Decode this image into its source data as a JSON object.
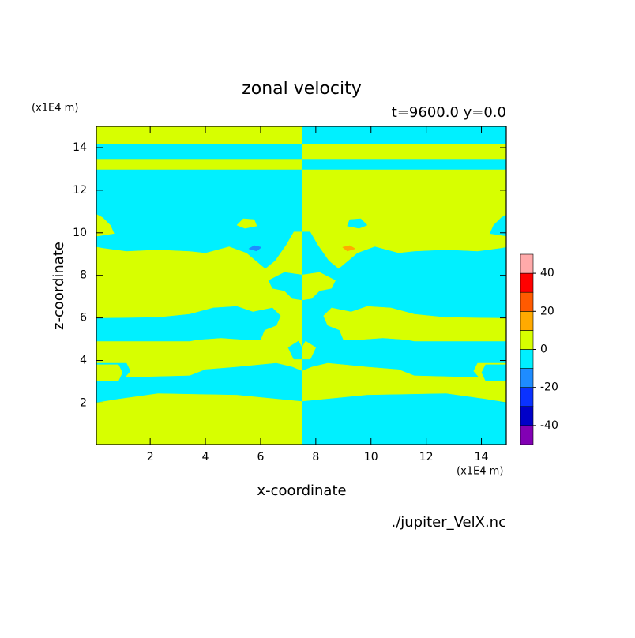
{
  "chart_data": {
    "type": "contour",
    "title": "zonal velocity",
    "subtitle": "t=9600.0 y=0.0",
    "x_label": "x-coordinate",
    "y_label": "z-coordinate",
    "x_unit": "(x1E4 m)",
    "y_unit": "(x1E4 m)",
    "source": "./jupiter_VelX.nc",
    "xlim": [
      0.05,
      14.9
    ],
    "ylim": [
      0.05,
      15
    ],
    "xticks": [
      2,
      4,
      6,
      8,
      10,
      12,
      14
    ],
    "yticks": [
      2,
      4,
      6,
      8,
      10,
      12,
      14
    ],
    "levels": [
      -50,
      -40,
      -30,
      -20,
      -10,
      0,
      10,
      20,
      30,
      40,
      50
    ],
    "colors": [
      "#8200b4",
      "#0000c8",
      "#0a32ff",
      "#1e8cff",
      "#00f0ff",
      "#d7ff00",
      "#ffaa00",
      "#ff5a00",
      "#ff0000",
      "#ffaaaa"
    ],
    "colorbar_ticks": [
      -40,
      -20,
      0,
      20,
      40
    ],
    "regions": [
      {
        "band": 5,
        "polygon": [
          [
            0,
            0
          ],
          [
            7.5,
            0
          ],
          [
            7.5,
            15
          ],
          [
            0,
            15
          ]
        ]
      },
      {
        "band": 4,
        "polygon": [
          [
            7.5,
            0
          ],
          [
            15,
            0
          ],
          [
            15,
            15
          ],
          [
            7.5,
            15
          ]
        ]
      },
      {
        "band": 4,
        "polygon": [
          [
            0,
            14.15
          ],
          [
            7.5,
            14.15
          ],
          [
            7.5,
            13.44
          ],
          [
            0,
            13.44
          ]
        ]
      },
      {
        "band": 4,
        "polygon": [
          [
            0,
            12.96
          ],
          [
            7.5,
            12.96
          ],
          [
            7.5,
            10.06
          ],
          [
            7.2,
            10.06
          ],
          [
            6.92,
            9.43
          ],
          [
            6.52,
            8.69
          ],
          [
            6.17,
            8.32
          ],
          [
            5.83,
            8.69
          ],
          [
            5.49,
            9.06
          ],
          [
            4.86,
            9.36
          ],
          [
            4.0,
            9.06
          ],
          [
            3.43,
            9.14
          ],
          [
            2.28,
            9.21
          ],
          [
            1.14,
            9.14
          ],
          [
            0.28,
            9.29
          ],
          [
            0,
            9.36
          ],
          [
            0,
            9.81
          ],
          [
            0.71,
            9.95
          ],
          [
            0.57,
            10.36
          ],
          [
            0.28,
            10.73
          ],
          [
            0,
            10.92
          ]
        ]
      },
      {
        "band": 5,
        "polygon": [
          [
            5.14,
            10.36
          ],
          [
            5.37,
            10.66
          ],
          [
            5.77,
            10.62
          ],
          [
            5.86,
            10.32
          ],
          [
            5.43,
            10.21
          ]
        ]
      },
      {
        "band": 4,
        "polygon": [
          [
            0,
            5.98
          ],
          [
            2.28,
            6.02
          ],
          [
            3.43,
            6.17
          ],
          [
            4.28,
            6.47
          ],
          [
            5.14,
            6.54
          ],
          [
            5.72,
            6.28
          ],
          [
            6.43,
            6.47
          ],
          [
            6.72,
            6.1
          ],
          [
            6.57,
            5.65
          ],
          [
            6.14,
            5.43
          ],
          [
            6.0,
            4.98
          ],
          [
            5.43,
            4.98
          ],
          [
            4.57,
            5.06
          ],
          [
            3.71,
            4.98
          ],
          [
            3.43,
            4.91
          ],
          [
            0,
            4.91
          ]
        ]
      },
      {
        "band": 4,
        "polygon": [
          [
            6.29,
            7.76
          ],
          [
            6.86,
            8.14
          ],
          [
            7.5,
            8.02
          ],
          [
            7.5,
            6.84
          ],
          [
            7.15,
            6.91
          ],
          [
            6.86,
            7.28
          ],
          [
            6.43,
            7.39
          ]
        ]
      },
      {
        "band": 4,
        "polygon": [
          [
            0,
            3.87
          ],
          [
            1.14,
            3.87
          ],
          [
            1.28,
            3.5
          ],
          [
            1.08,
            3.2
          ],
          [
            3.43,
            3.28
          ],
          [
            4.0,
            3.57
          ],
          [
            5.14,
            3.69
          ],
          [
            6.0,
            3.8
          ],
          [
            6.57,
            3.87
          ],
          [
            7.15,
            3.69
          ],
          [
            7.5,
            3.5
          ],
          [
            7.5,
            2.09
          ],
          [
            5.14,
            2.39
          ],
          [
            2.28,
            2.46
          ],
          [
            0.85,
            2.2
          ],
          [
            0,
            2.02
          ]
        ]
      },
      {
        "band": 5,
        "polygon": [
          [
            0,
            3.8
          ],
          [
            0.85,
            3.8
          ],
          [
            0.99,
            3.43
          ],
          [
            0.85,
            3.05
          ],
          [
            0,
            3.05
          ]
        ]
      },
      {
        "band": 4,
        "polygon": [
          [
            7.0,
            4.61
          ],
          [
            7.37,
            4.91
          ],
          [
            7.5,
            4.61
          ],
          [
            7.5,
            4.06
          ],
          [
            7.2,
            4.06
          ]
        ]
      },
      {
        "band": 3,
        "polygon": [
          [
            5.57,
            9.25
          ],
          [
            5.77,
            9.4
          ],
          [
            6.03,
            9.32
          ],
          [
            5.86,
            9.14
          ]
        ]
      },
      {
        "band": 5,
        "polygon": [
          [
            15,
            14.15
          ],
          [
            7.5,
            14.15
          ],
          [
            7.5,
            13.44
          ],
          [
            15,
            13.44
          ]
        ]
      },
      {
        "band": 5,
        "polygon": [
          [
            15,
            12.96
          ],
          [
            7.5,
            12.96
          ],
          [
            7.5,
            10.06
          ],
          [
            7.8,
            10.06
          ],
          [
            8.08,
            9.43
          ],
          [
            8.48,
            8.69
          ],
          [
            8.83,
            8.32
          ],
          [
            9.17,
            8.69
          ],
          [
            9.51,
            9.06
          ],
          [
            10.14,
            9.36
          ],
          [
            11.0,
            9.06
          ],
          [
            11.57,
            9.14
          ],
          [
            12.72,
            9.21
          ],
          [
            13.86,
            9.14
          ],
          [
            14.72,
            9.29
          ],
          [
            15,
            9.36
          ],
          [
            15,
            9.81
          ],
          [
            14.29,
            9.95
          ],
          [
            14.43,
            10.36
          ],
          [
            14.72,
            10.73
          ],
          [
            15,
            10.92
          ]
        ]
      },
      {
        "band": 4,
        "polygon": [
          [
            9.86,
            10.36
          ],
          [
            9.63,
            10.66
          ],
          [
            9.23,
            10.62
          ],
          [
            9.14,
            10.32
          ],
          [
            9.57,
            10.21
          ]
        ]
      },
      {
        "band": 5,
        "polygon": [
          [
            15,
            5.98
          ],
          [
            12.72,
            6.02
          ],
          [
            11.57,
            6.17
          ],
          [
            10.72,
            6.47
          ],
          [
            9.86,
            6.54
          ],
          [
            9.28,
            6.28
          ],
          [
            8.57,
            6.47
          ],
          [
            8.28,
            6.1
          ],
          [
            8.43,
            5.65
          ],
          [
            8.86,
            5.43
          ],
          [
            9.0,
            4.98
          ],
          [
            9.57,
            4.98
          ],
          [
            10.43,
            5.06
          ],
          [
            11.29,
            4.98
          ],
          [
            11.57,
            4.91
          ],
          [
            15,
            4.91
          ]
        ]
      },
      {
        "band": 5,
        "polygon": [
          [
            8.71,
            7.76
          ],
          [
            8.14,
            8.14
          ],
          [
            7.5,
            8.02
          ],
          [
            7.5,
            6.84
          ],
          [
            7.85,
            6.91
          ],
          [
            8.14,
            7.28
          ],
          [
            8.57,
            7.39
          ]
        ]
      },
      {
        "band": 5,
        "polygon": [
          [
            15,
            3.87
          ],
          [
            13.86,
            3.87
          ],
          [
            13.72,
            3.5
          ],
          [
            13.92,
            3.2
          ],
          [
            11.57,
            3.28
          ],
          [
            11.0,
            3.57
          ],
          [
            9.86,
            3.69
          ],
          [
            9.0,
            3.8
          ],
          [
            8.43,
            3.87
          ],
          [
            7.85,
            3.69
          ],
          [
            7.5,
            3.5
          ],
          [
            7.5,
            2.09
          ],
          [
            9.86,
            2.39
          ],
          [
            12.72,
            2.46
          ],
          [
            14.15,
            2.2
          ],
          [
            15,
            2.02
          ]
        ]
      },
      {
        "band": 4,
        "polygon": [
          [
            15,
            3.8
          ],
          [
            14.15,
            3.8
          ],
          [
            14.01,
            3.43
          ],
          [
            14.15,
            3.05
          ],
          [
            15,
            3.05
          ]
        ]
      },
      {
        "band": 5,
        "polygon": [
          [
            8.0,
            4.61
          ],
          [
            7.63,
            4.91
          ],
          [
            7.5,
            4.61
          ],
          [
            7.5,
            4.06
          ],
          [
            7.8,
            4.06
          ]
        ]
      },
      {
        "band": 6,
        "polygon": [
          [
            9.43,
            9.25
          ],
          [
            9.23,
            9.4
          ],
          [
            8.97,
            9.32
          ],
          [
            9.14,
            9.14
          ]
        ]
      }
    ]
  }
}
